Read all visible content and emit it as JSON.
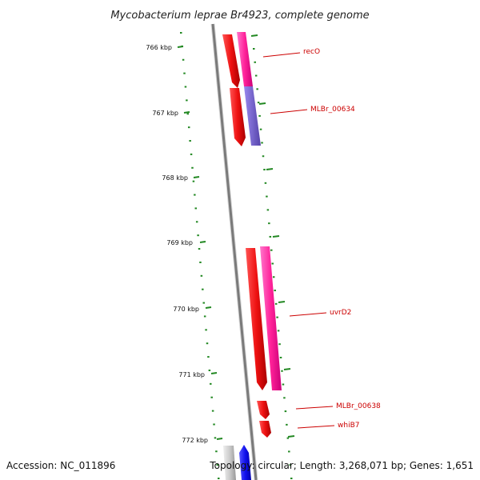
{
  "title": "Mycobacterium leprae Br4923, complete genome",
  "footer": {
    "accession": "Accession: NC_011896",
    "summary": "Topology: circular; Length: 3,268,071 bp; Genes: 1,651"
  },
  "ticks": [
    "766 kbp",
    "767 kbp",
    "768 kbp",
    "769 kbp",
    "770 kbp",
    "771 kbp",
    "772 kbp"
  ],
  "gene_labels": [
    "recO",
    "MLBr_00634",
    "uvrD2",
    "MLBr_00638",
    "whiB7"
  ],
  "colors": {
    "cds": "#ee1111",
    "gene": "#ff33aa",
    "misc": "#7766cc",
    "backbone": "#888888",
    "tick": "#228822",
    "label": "#cc0000",
    "blue_feature": "#1111ee",
    "grey_feature": "#cccccc"
  }
}
